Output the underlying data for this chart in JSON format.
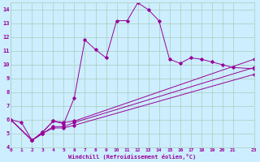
{
  "xlabel": "Windchill (Refroidissement éolien,°C)",
  "bg_color": "#cceeff",
  "line_color": "#990099",
  "grid_color": "#aaccbb",
  "series1": [
    [
      0,
      6.0
    ],
    [
      1,
      5.8
    ],
    [
      2,
      4.5
    ],
    [
      3,
      5.1
    ],
    [
      4,
      5.9
    ],
    [
      5,
      5.7
    ],
    [
      6,
      7.6
    ],
    [
      7,
      11.8
    ],
    [
      8,
      11.1
    ],
    [
      9,
      10.5
    ],
    [
      10,
      13.2
    ],
    [
      11,
      13.2
    ],
    [
      12,
      14.5
    ],
    [
      13,
      14.0
    ],
    [
      14,
      13.2
    ],
    [
      15,
      10.4
    ],
    [
      16,
      10.1
    ],
    [
      17,
      10.5
    ],
    [
      18,
      10.4
    ],
    [
      19,
      10.2
    ],
    [
      20,
      10.0
    ],
    [
      21,
      9.8
    ],
    [
      23,
      9.7
    ]
  ],
  "series2": [
    [
      0,
      6.0
    ],
    [
      2,
      4.5
    ],
    [
      3,
      5.1
    ],
    [
      4,
      5.9
    ],
    [
      5,
      5.8
    ],
    [
      6,
      5.9
    ],
    [
      23,
      10.4
    ]
  ],
  "series3": [
    [
      0,
      6.0
    ],
    [
      2,
      4.5
    ],
    [
      3,
      5.0
    ],
    [
      4,
      5.5
    ],
    [
      5,
      5.5
    ],
    [
      6,
      5.8
    ],
    [
      23,
      9.8
    ]
  ],
  "series4": [
    [
      0,
      6.0
    ],
    [
      2,
      4.5
    ],
    [
      3,
      5.0
    ],
    [
      4,
      5.4
    ],
    [
      5,
      5.4
    ],
    [
      6,
      5.6
    ],
    [
      23,
      9.3
    ]
  ],
  "xlim": [
    0,
    23
  ],
  "ylim": [
    4,
    14.5
  ],
  "xticks": [
    0,
    1,
    2,
    3,
    4,
    5,
    6,
    7,
    8,
    9,
    10,
    11,
    12,
    13,
    14,
    15,
    16,
    17,
    18,
    19,
    20,
    21,
    23
  ],
  "yticks": [
    4,
    5,
    6,
    7,
    8,
    9,
    10,
    11,
    12,
    13,
    14
  ]
}
